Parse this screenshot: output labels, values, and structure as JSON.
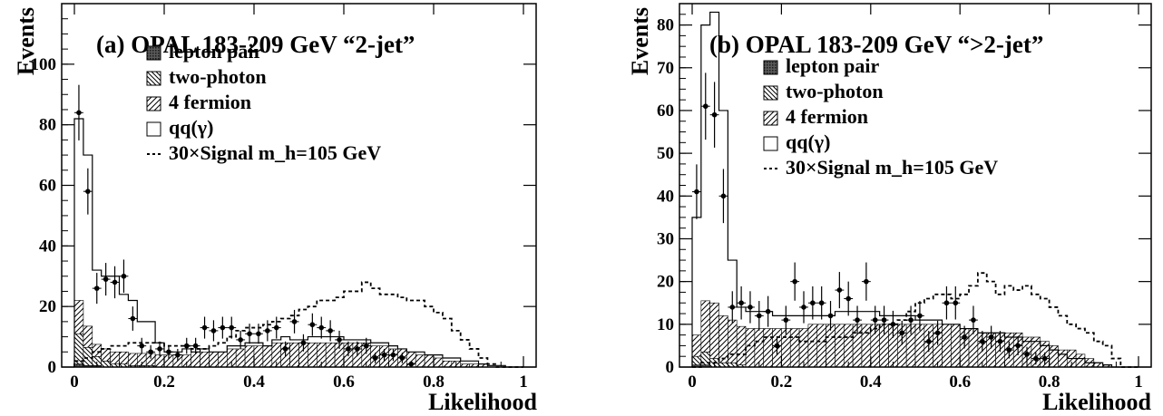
{
  "colors": {
    "ink": "#000000",
    "background": "#ffffff",
    "hatch": "#000000",
    "lepton_fill": "#7a7a7a"
  },
  "legend_items": {
    "lepton": "lepton pair",
    "twophoton": "two-photon",
    "fourf": "4 fermion",
    "qq": "qq(γ)",
    "signal": "30×Signal m_h=105 GeV"
  },
  "chart_data": [
    {
      "type": "bar",
      "title": "(a) OPAL 183-209 GeV “2-jet”",
      "xlabel": "Likelihood",
      "ylabel": "Events",
      "xlim": [
        0,
        1
      ],
      "ylim": [
        0,
        120
      ],
      "xticks": [
        "0",
        "0.2",
        "0.4",
        "0.6",
        "0.8",
        "1"
      ],
      "yticks": [
        "0",
        "20",
        "40",
        "60",
        "80",
        "100"
      ],
      "bin_width": 0.02,
      "grid": false,
      "legend_position": "top-right",
      "series": [
        {
          "name": "lepton pair",
          "kind": "stack",
          "values": [
            1,
            0.5,
            0.5,
            0,
            0,
            0,
            0,
            0,
            0,
            0,
            0,
            0,
            0,
            0,
            0,
            0,
            0,
            0,
            0,
            0,
            0,
            0,
            0,
            0,
            0,
            0,
            0,
            0,
            0,
            0,
            0,
            0,
            0,
            0,
            0,
            0,
            0,
            0,
            0,
            0,
            0,
            0,
            0,
            0,
            0,
            0,
            0,
            0,
            0,
            0
          ]
        },
        {
          "name": "two-photon",
          "kind": "stack",
          "values": [
            10,
            6,
            3,
            2,
            1,
            1,
            0.5,
            0.5,
            0.5,
            0,
            0,
            0,
            0,
            0,
            0,
            0,
            0,
            0,
            0,
            0,
            0,
            0,
            0,
            0,
            0,
            0,
            0,
            0,
            0,
            0,
            0,
            0,
            0,
            0,
            0,
            0,
            0,
            0,
            0,
            0,
            0,
            0,
            0,
            0,
            0,
            0,
            0,
            0,
            0,
            0
          ]
        },
        {
          "name": "4 fermion",
          "kind": "stack",
          "values": [
            11,
            7,
            4,
            4,
            4,
            4,
            4,
            4,
            4,
            4,
            4,
            4,
            4,
            5,
            5,
            5,
            5,
            6,
            6,
            7,
            7,
            7,
            8,
            8,
            8,
            8,
            8,
            8,
            8,
            8,
            8,
            8,
            8,
            7,
            7,
            6,
            6,
            5,
            4,
            4,
            3,
            2,
            2,
            1,
            1,
            1,
            0,
            0,
            0,
            0
          ]
        },
        {
          "name": "qq(γ)",
          "kind": "total",
          "values": [
            82,
            70,
            32,
            30,
            30,
            24,
            22,
            15,
            15,
            8,
            5,
            5,
            6,
            5,
            6,
            5,
            5,
            7,
            7,
            8,
            8,
            7,
            9,
            10,
            9,
            9,
            10,
            10,
            10,
            10,
            9,
            9,
            9,
            8,
            8,
            7,
            6,
            5,
            5,
            4,
            4,
            3,
            3,
            2,
            2,
            1,
            0.5,
            0.5,
            0,
            0
          ]
        },
        {
          "name": "30×Signal m_h=105 GeV",
          "kind": "signal",
          "values": [
            2,
            3,
            5,
            6,
            7,
            7,
            8,
            8,
            8,
            8,
            7,
            7,
            7,
            6,
            6,
            7,
            8,
            10,
            12,
            13,
            13,
            14,
            15,
            16,
            17,
            19,
            20,
            22,
            22,
            23,
            25,
            25,
            28,
            26,
            24,
            24,
            23,
            22,
            22,
            20,
            18,
            16,
            12,
            9,
            6,
            3,
            1,
            0,
            0,
            0
          ]
        },
        {
          "name": "Data",
          "kind": "data",
          "x": [
            0.01,
            0.03,
            0.05,
            0.07,
            0.09,
            0.11,
            0.13,
            0.15,
            0.17,
            0.19,
            0.21,
            0.23,
            0.25,
            0.27,
            0.29,
            0.31,
            0.33,
            0.35,
            0.37,
            0.39,
            0.41,
            0.43,
            0.45,
            0.47,
            0.49,
            0.51,
            0.53,
            0.55,
            0.57,
            0.59,
            0.61,
            0.63,
            0.65,
            0.67,
            0.69,
            0.71,
            0.73,
            0.75
          ],
          "y": [
            84,
            58,
            26,
            29,
            28,
            30,
            16,
            7,
            5,
            6,
            5,
            4,
            7,
            7,
            13,
            12,
            13,
            13,
            9,
            11,
            11,
            12,
            13,
            6,
            15,
            8,
            14,
            13,
            12,
            9,
            6,
            6,
            7,
            3,
            4,
            4,
            3,
            1
          ]
        }
      ]
    },
    {
      "type": "bar",
      "title": "(b) OPAL 183-209 GeV “>2-jet”",
      "xlabel": "Likelihood",
      "ylabel": "Events",
      "xlim": [
        0,
        1
      ],
      "ylim": [
        0,
        85
      ],
      "xticks": [
        "0",
        "0.2",
        "0.4",
        "0.6",
        "0.8",
        "1"
      ],
      "yticks": [
        "0",
        "10",
        "20",
        "30",
        "40",
        "50",
        "60",
        "70",
        "80"
      ],
      "bin_width": 0.02,
      "grid": false,
      "legend_position": "top-right",
      "series": [
        {
          "name": "lepton pair",
          "kind": "stack",
          "values": [
            0.5,
            0.5,
            0,
            0,
            0,
            0,
            0,
            0,
            0,
            0,
            0,
            0,
            0,
            0,
            0,
            0,
            0,
            0,
            0,
            0,
            0,
            0,
            0,
            0,
            0,
            0,
            0,
            0,
            0,
            0,
            0,
            0,
            0,
            0,
            0,
            0,
            0,
            0,
            0,
            0,
            0,
            0,
            0,
            0,
            0,
            0,
            0,
            0,
            0,
            0
          ]
        },
        {
          "name": "two-photon",
          "kind": "stack",
          "values": [
            2,
            3,
            2,
            1,
            1,
            0.5,
            0,
            0,
            0,
            0,
            0,
            0,
            0,
            0,
            0,
            0,
            0,
            0,
            0,
            0,
            0,
            0,
            0,
            0,
            0,
            0,
            0,
            0,
            0,
            0,
            0,
            0,
            0,
            0,
            0,
            0,
            0,
            0,
            0,
            0,
            0,
            0,
            0,
            0,
            0,
            0,
            0,
            0,
            0,
            0
          ]
        },
        {
          "name": "4 fermion",
          "kind": "stack",
          "values": [
            5,
            12,
            13,
            11,
            10,
            9,
            9,
            9,
            9,
            9,
            9,
            9,
            9,
            10,
            10,
            10,
            10,
            10,
            10,
            10,
            10,
            10,
            10,
            10,
            10,
            10,
            10,
            10,
            10,
            10,
            9,
            9,
            8,
            8,
            8,
            8,
            8,
            7,
            7,
            6,
            5,
            4,
            4,
            3,
            2,
            1,
            0.5,
            0,
            0,
            0
          ]
        },
        {
          "name": "qq(γ)",
          "kind": "total",
          "values": [
            35,
            80,
            83,
            60,
            25,
            14,
            13,
            13,
            13,
            12,
            12,
            12,
            12,
            12,
            12,
            12,
            13,
            13,
            13,
            13,
            13,
            12,
            12,
            12,
            12,
            11,
            11,
            11,
            10,
            10,
            9,
            9,
            8,
            8,
            8,
            7,
            7,
            6,
            6,
            5,
            4,
            3,
            2,
            2,
            1,
            1,
            0.5,
            0,
            0,
            0
          ]
        },
        {
          "name": "30×Signal m_h=105 GeV",
          "kind": "signal",
          "values": [
            0,
            1,
            1,
            2,
            3,
            3,
            5,
            6,
            7,
            7,
            7,
            7,
            6,
            6,
            6,
            7,
            7,
            7,
            8,
            8,
            9,
            10,
            10,
            11,
            13,
            15,
            16,
            17,
            17,
            16,
            17,
            19,
            22,
            20,
            17,
            19,
            18,
            19,
            17,
            16,
            14,
            12,
            10,
            9,
            8,
            6,
            5,
            2,
            0,
            0
          ]
        },
        {
          "name": "Data",
          "kind": "data",
          "x": [
            0.01,
            0.03,
            0.05,
            0.07,
            0.09,
            0.11,
            0.13,
            0.15,
            0.17,
            0.19,
            0.21,
            0.23,
            0.25,
            0.27,
            0.29,
            0.31,
            0.33,
            0.35,
            0.37,
            0.39,
            0.41,
            0.43,
            0.45,
            0.47,
            0.49,
            0.51,
            0.53,
            0.55,
            0.57,
            0.59,
            0.61,
            0.63,
            0.65,
            0.67,
            0.69,
            0.71,
            0.73,
            0.75,
            0.77,
            0.79
          ],
          "y": [
            41,
            61,
            59,
            40,
            14,
            15,
            14,
            12,
            13,
            5,
            11,
            20,
            14,
            15,
            15,
            12,
            18,
            16,
            11,
            20,
            11,
            11,
            10,
            8,
            11,
            12,
            6,
            8,
            15,
            15,
            7,
            11,
            6,
            7,
            6,
            4,
            5,
            3,
            2,
            2
          ]
        }
      ]
    }
  ]
}
